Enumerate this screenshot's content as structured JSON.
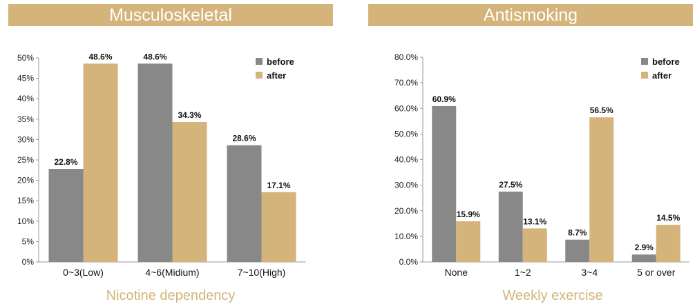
{
  "colors": {
    "before": "#888888",
    "after": "#d4b47a",
    "banner": "#d4b47a",
    "axis": "#999999"
  },
  "chart_data": [
    {
      "type": "bar",
      "title": "Musculoskeletal",
      "xlabel": "Nicotine dependency",
      "ylabel": "",
      "categories": [
        "0~3(Low)",
        "4~6(Midium)",
        "7~10(High)"
      ],
      "series": [
        {
          "name": "before",
          "values": [
            22.8,
            48.6,
            28.6
          ],
          "labels": [
            "22.8%",
            "48.6%",
            "28.6%"
          ]
        },
        {
          "name": "after",
          "values": [
            48.6,
            34.3,
            17.1
          ],
          "labels": [
            "48.6%",
            "34.3%",
            "17.1%"
          ]
        }
      ],
      "ylim": [
        0,
        50
      ],
      "yticks": [
        0,
        5,
        10,
        15,
        20,
        25,
        30,
        35,
        40,
        45,
        50
      ],
      "ytick_labels": [
        "0%",
        "5%",
        "10%",
        "15%",
        "20%",
        "25%",
        "30%",
        "35%",
        "40%",
        "45%",
        "50%"
      ],
      "legend": "top-right",
      "grid": false
    },
    {
      "type": "bar",
      "title": "Antismoking",
      "xlabel": "Weekly exercise",
      "ylabel": "",
      "categories": [
        "None",
        "1~2",
        "3~4",
        "5 or over"
      ],
      "series": [
        {
          "name": "before",
          "values": [
            60.9,
            27.5,
            8.7,
            2.9
          ],
          "labels": [
            "60.9%",
            "27.5%",
            "8.7%",
            "2.9%"
          ]
        },
        {
          "name": "after",
          "values": [
            15.9,
            13.1,
            56.5,
            14.5
          ],
          "labels": [
            "15.9%",
            "13.1%",
            "56.5%",
            "14.5%"
          ]
        }
      ],
      "ylim": [
        0,
        80
      ],
      "yticks": [
        0,
        10,
        20,
        30,
        40,
        50,
        60,
        70,
        80
      ],
      "ytick_labels": [
        "0.0%",
        "10.0%",
        "20.0%",
        "30.0%",
        "40.0%",
        "50.0%",
        "60.0%",
        "70.0%",
        "80.0%"
      ],
      "legend": "top-right",
      "grid": false
    }
  ]
}
